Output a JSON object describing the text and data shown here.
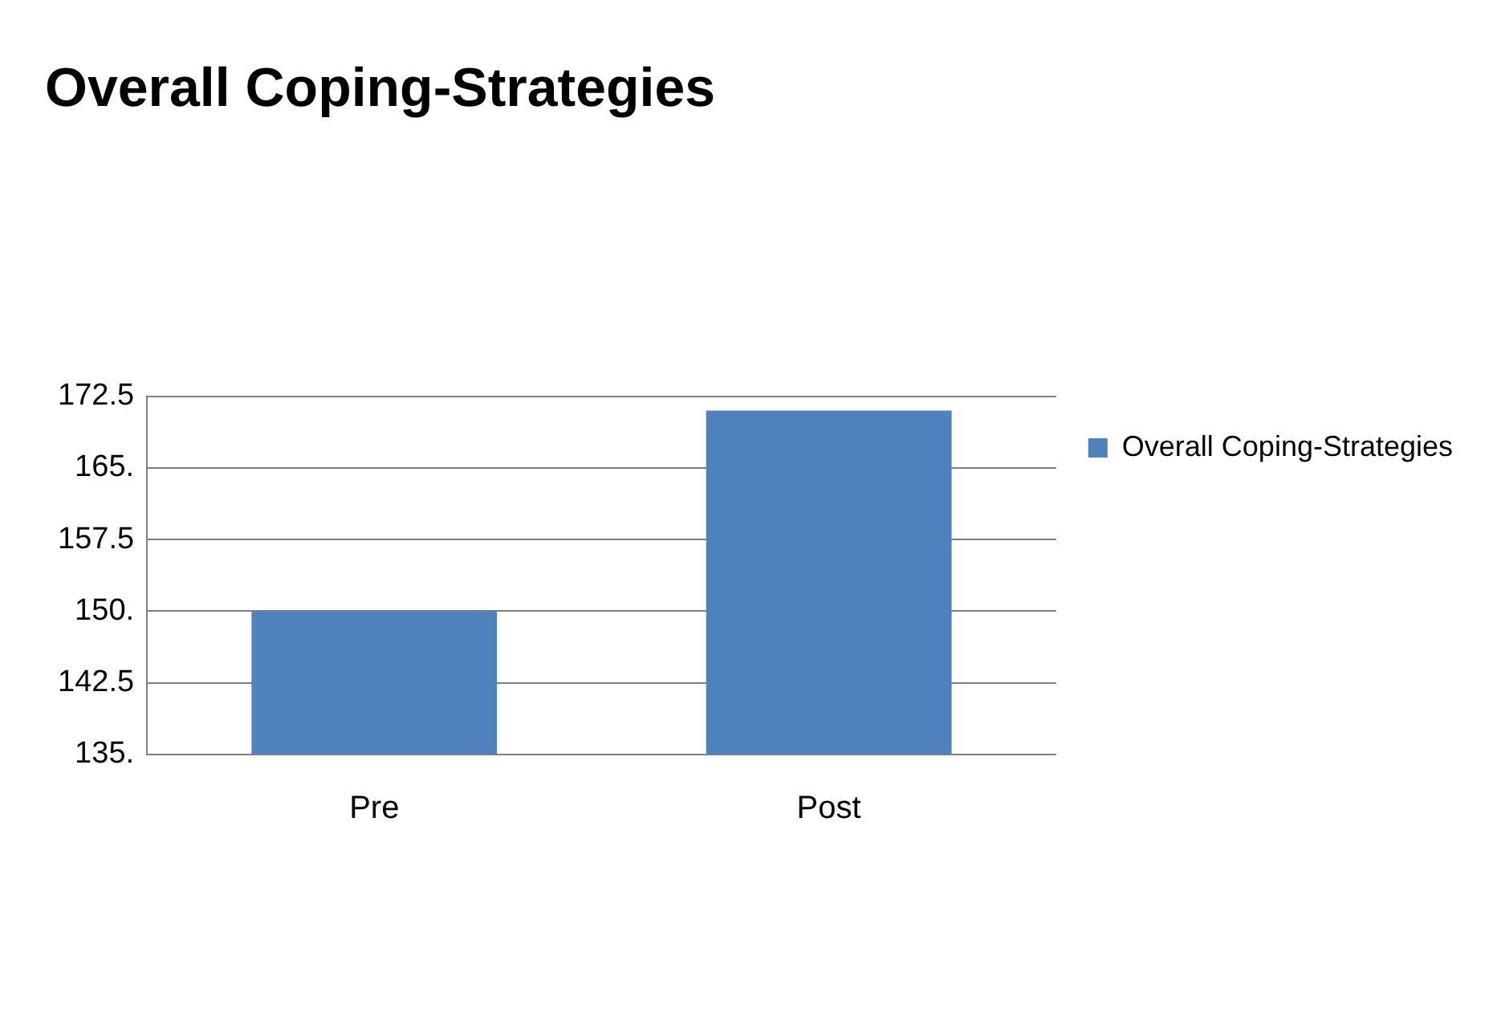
{
  "chart_data": {
    "type": "bar",
    "title": "Overall Coping-Strategies",
    "categories": [
      "Pre",
      "Post"
    ],
    "series": [
      {
        "name": "Overall Coping-Strategies",
        "color": "#4f81bd",
        "values": [
          150,
          171
        ]
      }
    ],
    "ylim": [
      135,
      172.5
    ],
    "yticks": [
      {
        "value": 135,
        "label": "135."
      },
      {
        "value": 142.5,
        "label": "142.5"
      },
      {
        "value": 150,
        "label": "150."
      },
      {
        "value": 157.5,
        "label": "157.5"
      },
      {
        "value": 165,
        "label": "165."
      },
      {
        "value": 172.5,
        "label": "172.5"
      }
    ],
    "grid": "y",
    "legend": "right"
  }
}
